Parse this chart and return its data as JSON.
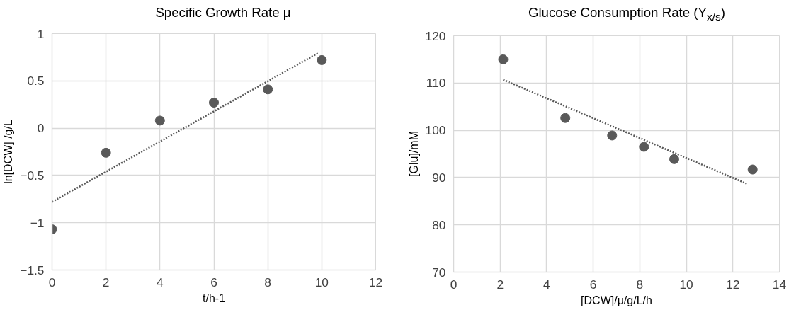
{
  "chart_data": [
    {
      "type": "scatter",
      "title": "Specific Growth Rate μ",
      "xlabel": "t/h-1",
      "ylabel": "ln[DCW] /g/L",
      "xlim": [
        0,
        12
      ],
      "xticks": [
        0,
        2,
        4,
        6,
        8,
        10,
        12
      ],
      "ylim": [
        -1.5,
        1
      ],
      "yticks": [
        -1.5,
        -1,
        -0.5,
        0,
        0.5,
        1
      ],
      "grid": true,
      "marker": "circle",
      "series": [
        {
          "color": "#595959",
          "x": [
            0,
            2,
            4,
            6,
            8,
            10
          ],
          "values": [
            -1.07,
            -0.26,
            0.08,
            0.27,
            0.41,
            0.72
          ]
        },
        {
          "type": "line",
          "color": "#595959",
          "line_style": "dotted",
          "marker": "none",
          "x": [
            0,
            9.9
          ],
          "values": [
            -0.78,
            0.8
          ]
        }
      ]
    },
    {
      "type": "scatter",
      "title": "Glucose Consumption Rate (Y$_{x/s}$)",
      "xlabel": "[DCW]/μ/g/L/h",
      "ylabel": "[Glu]/mM",
      "xlim": [
        0,
        14
      ],
      "xticks": [
        0,
        2,
        4,
        6,
        8,
        10,
        12,
        14
      ],
      "ylim": [
        70,
        120
      ],
      "yticks": [
        70,
        80,
        90,
        100,
        110,
        120
      ],
      "grid": true,
      "marker": "circle",
      "series": [
        {
          "color": "#595959",
          "x": [
            2.13,
            4.8,
            6.81,
            8.18,
            9.48,
            12.85
          ],
          "values": [
            115.0,
            102.6,
            98.9,
            96.5,
            93.9,
            91.7
          ]
        },
        {
          "type": "line",
          "color": "#595959",
          "line_style": "dotted",
          "marker": "none",
          "x": [
            2.13,
            12.64
          ],
          "values": [
            110.7,
            88.6
          ]
        }
      ]
    }
  ]
}
